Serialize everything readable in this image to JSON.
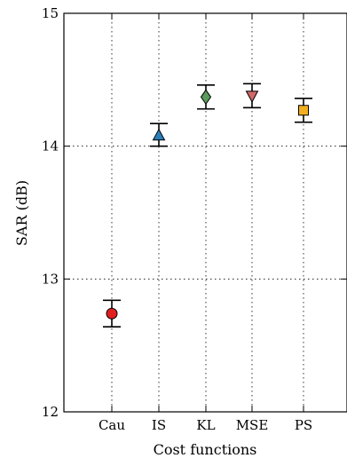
{
  "chart_data": {
    "type": "scatter",
    "title": "",
    "xlabel": "Cost functions",
    "ylabel": "SAR (dB)",
    "categories": [
      "Cau",
      "IS",
      "KL",
      "MSE",
      "PS"
    ],
    "values": [
      12.74,
      14.08,
      14.37,
      14.38,
      14.27
    ],
    "error_low": [
      12.64,
      14.0,
      14.28,
      14.29,
      14.18
    ],
    "error_high": [
      12.84,
      14.17,
      14.46,
      14.47,
      14.36
    ],
    "markers": [
      "circle",
      "triangle-up",
      "diamond",
      "triangle-down",
      "square"
    ],
    "colors": [
      "#e02020",
      "#2a7fb8",
      "#5a9a5a",
      "#d06868",
      "#f2b020"
    ],
    "ylim": [
      12,
      15
    ],
    "yticks": [
      "12",
      "13",
      "14",
      "15"
    ],
    "grid": true
  }
}
